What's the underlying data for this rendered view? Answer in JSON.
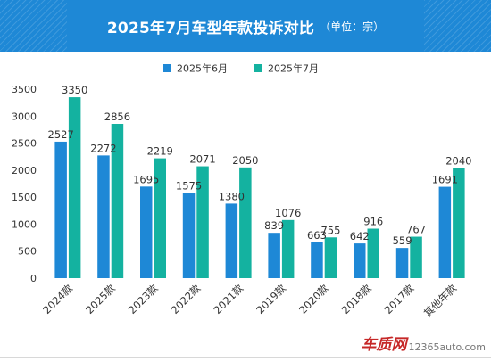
{
  "header": {
    "title": "2025年7月车型年款投诉对比",
    "subtitle": "（单位：宗）"
  },
  "colors": {
    "header_bg": "#1e88d6",
    "series_jun": "#1e88d6",
    "series_jul": "#14b2a0",
    "axis_text": "#333333",
    "label_text": "#333333"
  },
  "watermark": {
    "brand": "车质网",
    "url": "12365auto.com"
  },
  "chart_data": {
    "type": "bar",
    "categories": [
      "2024款",
      "2025款",
      "2023款",
      "2022款",
      "2021款",
      "2019款",
      "2020款",
      "2018款",
      "2017款",
      "其他年款"
    ],
    "series": [
      {
        "name": "2025年6月",
        "values": [
          2527,
          2272,
          1695,
          1575,
          1380,
          839,
          663,
          642,
          559,
          1691
        ]
      },
      {
        "name": "2025年7月",
        "values": [
          3350,
          2856,
          2219,
          2071,
          2050,
          1076,
          755,
          916,
          767,
          2040
        ]
      }
    ],
    "ylim": [
      0,
      3500
    ],
    "yticks": [
      0,
      500,
      1000,
      1500,
      2000,
      2500,
      3000,
      3500
    ],
    "grid": false,
    "legend_position": "top-center",
    "data_labels": true
  }
}
